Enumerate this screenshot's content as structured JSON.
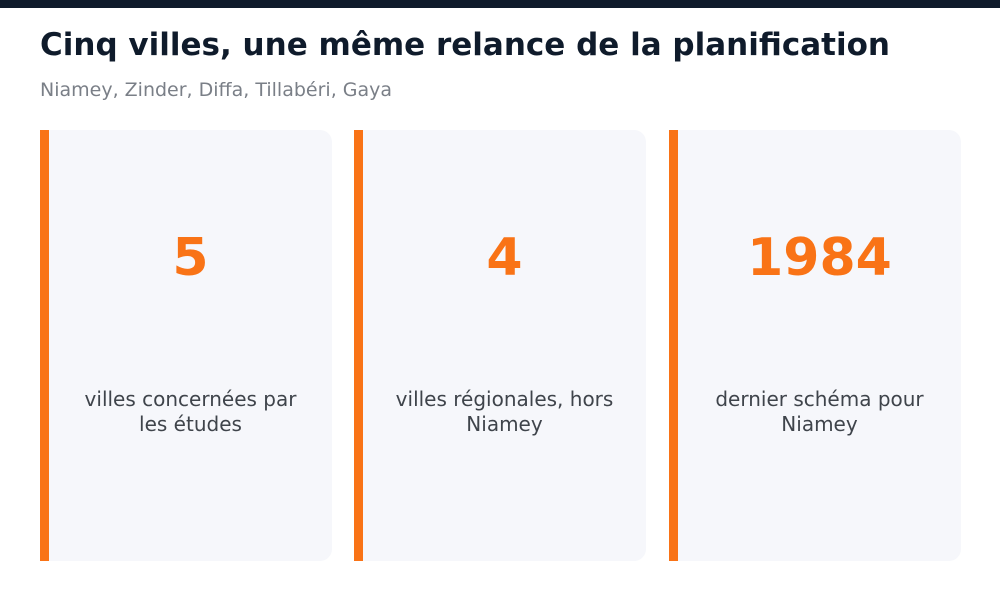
{
  "header": {
    "title": "Cinq villes, une même relance de la planification",
    "subtitle": "Niamey, Zinder, Diffa, Tillabéri, Gaya"
  },
  "cards": [
    {
      "value": "5",
      "label": "villes concernées par les études"
    },
    {
      "value": "4",
      "label": "villes régionales, hors Niamey"
    },
    {
      "value": "1984",
      "label": "dernier schéma pour Niamey"
    }
  ],
  "colors": {
    "accent": "#f97316",
    "title": "#0f1b2b",
    "subtitle": "#7a7f87",
    "card_background": "#f6f7fb",
    "label": "#3f444b"
  }
}
